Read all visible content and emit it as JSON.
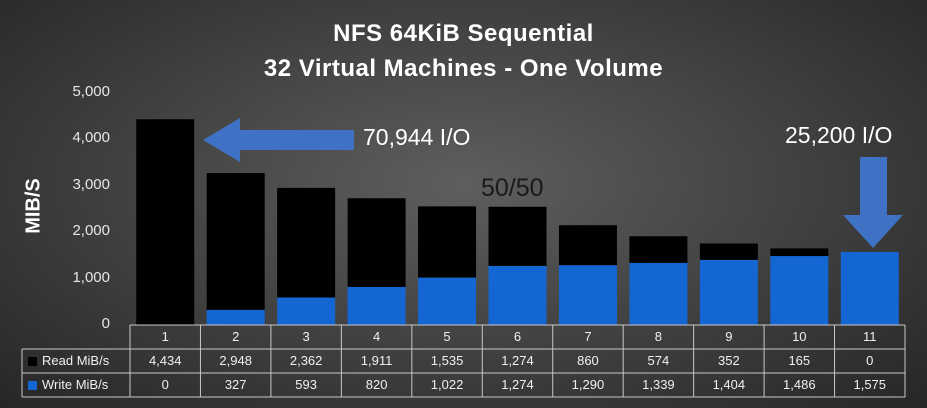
{
  "chart_data": {
    "type": "bar",
    "stacked": true,
    "title": "NFS 64KiB Sequential",
    "subtitle": "32 Virtual Machines - One Volume",
    "ylabel": "MIB/S",
    "ylim": [
      0,
      5000
    ],
    "yticks": [
      "0",
      "1,000",
      "2,000",
      "3,000",
      "4,000",
      "5,000"
    ],
    "grid": false,
    "legend": "data-table",
    "categories": [
      "1",
      "2",
      "3",
      "4",
      "5",
      "6",
      "7",
      "8",
      "9",
      "10",
      "11"
    ],
    "series": [
      {
        "name": "Write MiB/s",
        "color": "#1466d2",
        "values": [
          0,
          327,
          593,
          820,
          1022,
          1274,
          1290,
          1339,
          1404,
          1486,
          1575
        ],
        "labels": [
          "0",
          "327",
          "593",
          "820",
          "1,022",
          "1,274",
          "1,290",
          "1,339",
          "1,404",
          "1,486",
          "1,575"
        ]
      },
      {
        "name": "Read MiB/s",
        "color": "#000000",
        "values": [
          4434,
          2948,
          2362,
          1911,
          1535,
          1274,
          860,
          574,
          352,
          165,
          0
        ],
        "labels": [
          "4,434",
          "2,948",
          "2,362",
          "1,911",
          "1,535",
          "1,274",
          "860",
          "574",
          "352",
          "165",
          "0"
        ]
      }
    ],
    "annotations": {
      "left": "70,944 I/O",
      "right": "25,200 I/O",
      "middle": "50/50"
    }
  },
  "colors": {
    "arrow": "#3f72c4",
    "table_border": "#c8c8c8"
  }
}
